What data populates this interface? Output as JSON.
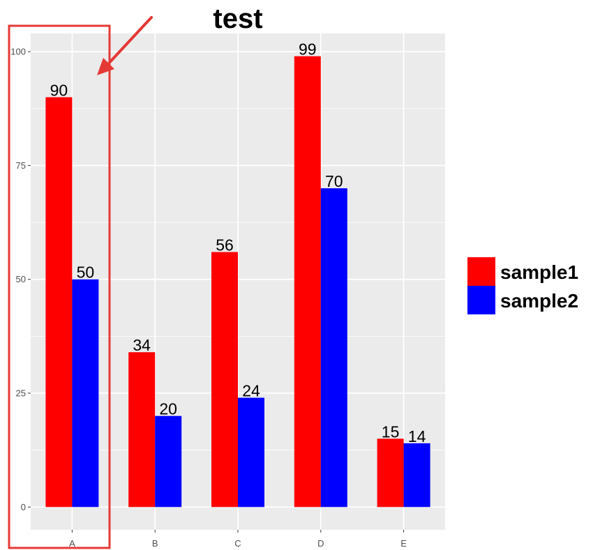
{
  "chart_data": {
    "type": "bar",
    "title": "test",
    "xlabel": "",
    "ylabel": "",
    "categories": [
      "A",
      "B",
      "C",
      "D",
      "E"
    ],
    "series": [
      {
        "name": "sample1",
        "values": [
          90,
          34,
          56,
          99,
          15
        ],
        "color": "#ff0000"
      },
      {
        "name": "sample2",
        "values": [
          50,
          20,
          24,
          70,
          14
        ],
        "color": "#0000ff"
      }
    ],
    "ylim": [
      -5,
      104
    ],
    "yticks": [
      0,
      25,
      50,
      75,
      100
    ],
    "y_tick_labels": [
      "0",
      "25",
      "50",
      "75",
      "100"
    ],
    "grid": true,
    "legend_position": "right",
    "panel_background": "#ebebeb",
    "grid_color": "#ffffff",
    "annotations": [
      {
        "type": "highlight-box",
        "target_category": "A",
        "color": "#e53935"
      },
      {
        "type": "arrow",
        "target_category": "A",
        "color": "#e53935"
      }
    ]
  }
}
